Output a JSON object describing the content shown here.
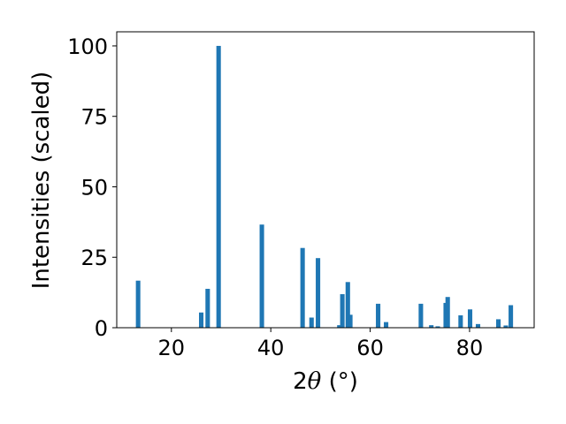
{
  "chart_data": {
    "type": "bar",
    "xlabel_prefix": "2",
    "xlabel_symbol": "θ",
    "xlabel_unit": " (°)",
    "ylabel": "Intensities (scaled)",
    "xlim": [
      9,
      93
    ],
    "ylim": [
      0,
      105
    ],
    "xticks": [
      20,
      40,
      60,
      80
    ],
    "yticks": [
      0,
      25,
      50,
      75,
      100
    ],
    "grid": false,
    "bar_color": "#1f77b4",
    "bar_width": 0.9,
    "x": [
      13.3,
      26.0,
      27.3,
      29.5,
      38.2,
      46.4,
      48.2,
      49.5,
      53.8,
      54.4,
      55.5,
      56.0,
      61.6,
      63.2,
      70.2,
      72.3,
      73.6,
      75.2,
      75.6,
      78.2,
      80.1,
      81.7,
      85.8,
      87.3,
      88.3
    ],
    "values": [
      16.7,
      5.4,
      13.8,
      100.0,
      36.6,
      28.3,
      3.6,
      24.7,
      0.9,
      11.9,
      16.2,
      4.6,
      8.5,
      2.0,
      8.5,
      0.9,
      0.5,
      8.8,
      10.9,
      4.4,
      6.5,
      1.3,
      3.0,
      0.8,
      8.0
    ]
  }
}
